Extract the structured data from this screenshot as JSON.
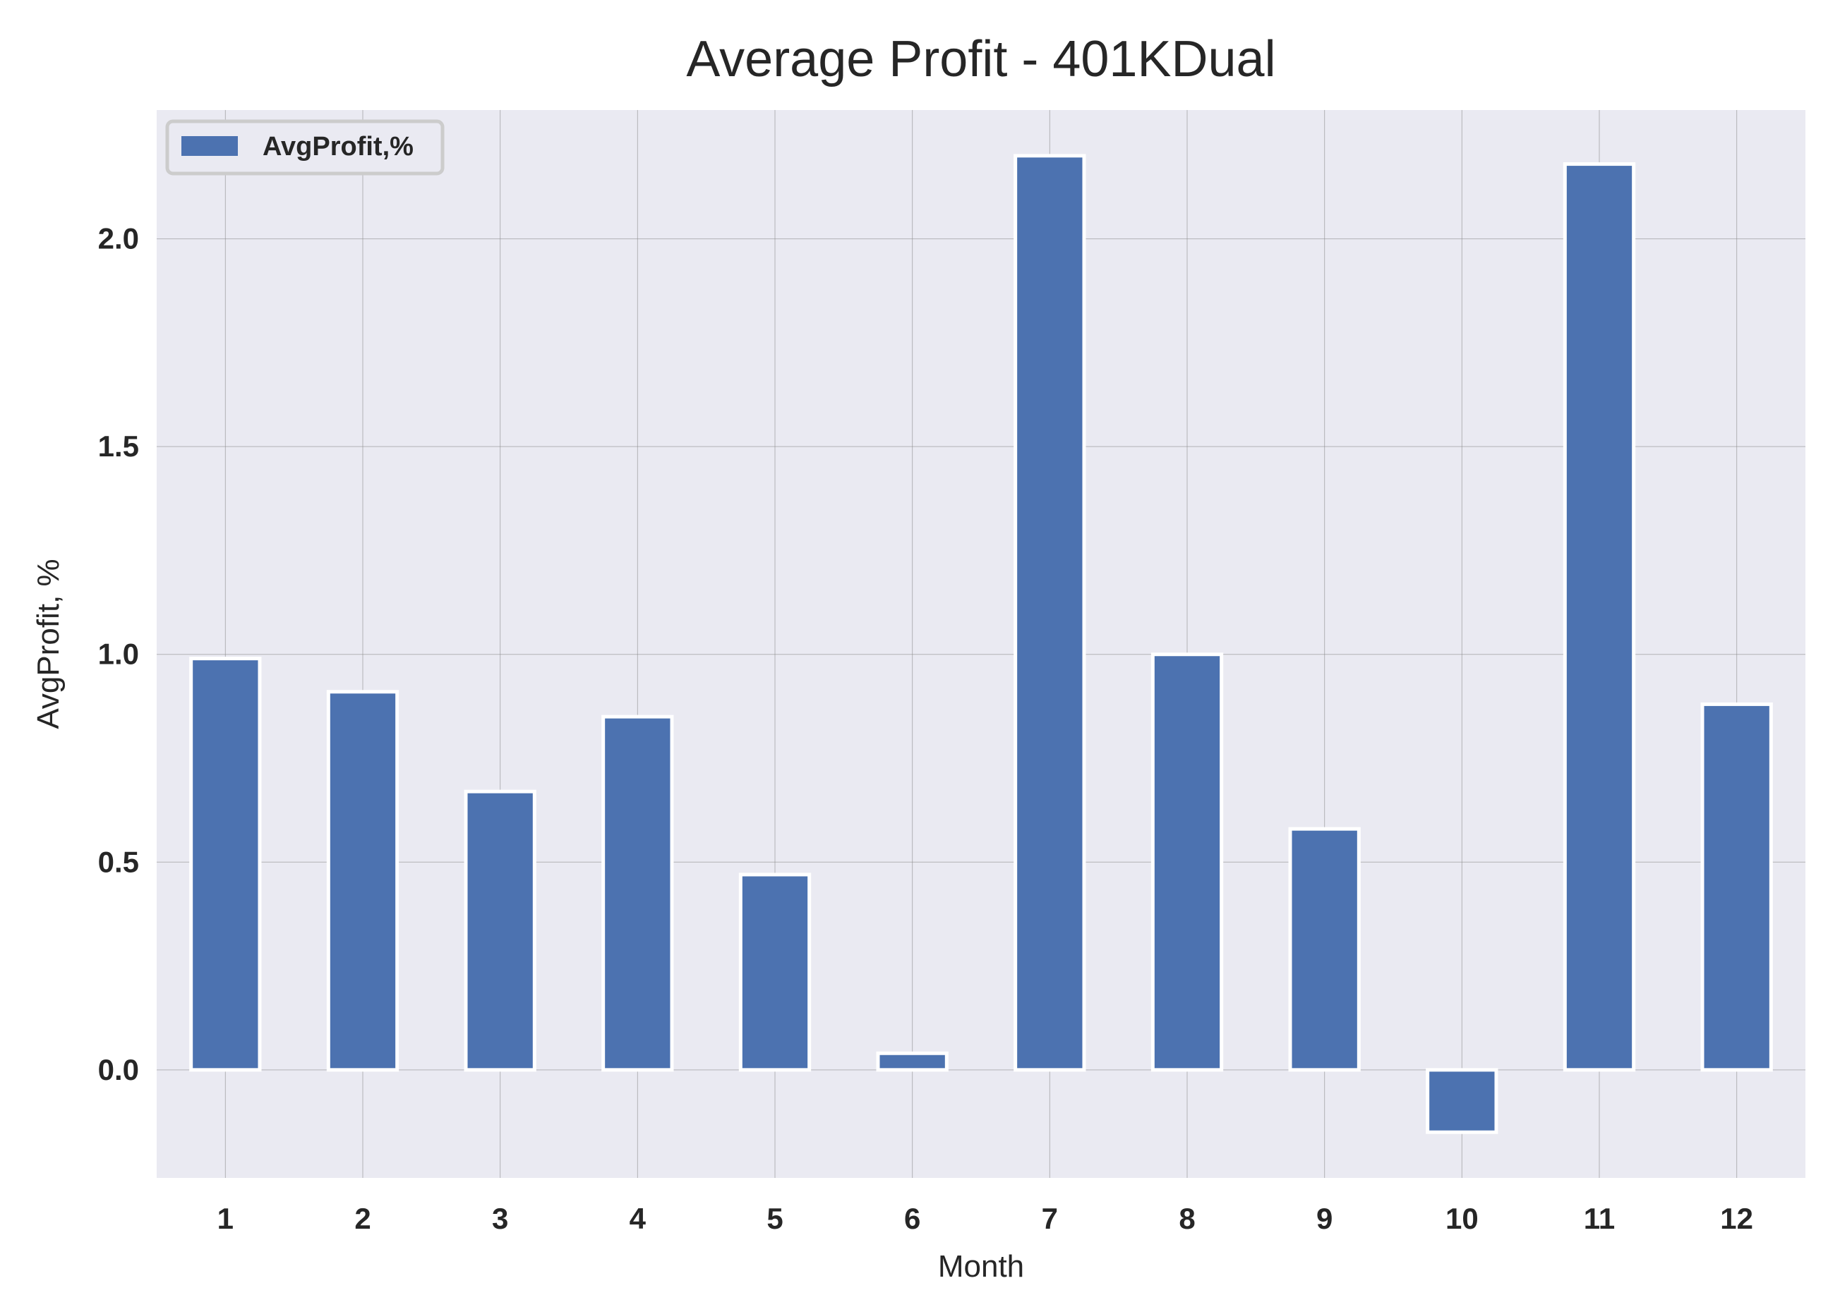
{
  "chart_data": {
    "type": "bar",
    "title": "Average Profit - 401KDual",
    "xlabel": "Month",
    "ylabel": "AvgProfit, %",
    "categories": [
      "1",
      "2",
      "3",
      "4",
      "5",
      "6",
      "7",
      "8",
      "9",
      "10",
      "11",
      "12"
    ],
    "series": [
      {
        "name": "AvgProfit,%",
        "values": [
          0.99,
          0.91,
          0.67,
          0.85,
          0.47,
          0.04,
          2.2,
          1.0,
          0.58,
          -0.15,
          2.18,
          0.88
        ]
      }
    ],
    "ylim": [
      -0.26,
      2.31
    ],
    "yticks": [
      "0.0",
      "0.5",
      "1.0",
      "1.5",
      "2.0"
    ],
    "ytick_values": [
      0.0,
      0.5,
      1.0,
      1.5,
      2.0
    ],
    "grid": true,
    "legend_position": "top-left",
    "colors": {
      "bar": "#4c72b0",
      "bar_edge": "#ffffff",
      "plot_background": "#eaeaf2",
      "grid": "#8c8c8c",
      "text": "#262626"
    }
  }
}
